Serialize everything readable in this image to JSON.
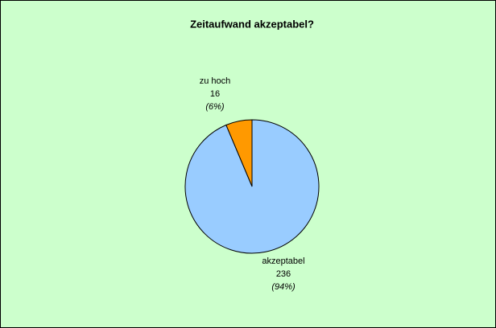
{
  "chart_data": {
    "type": "pie",
    "title": "Zeitaufwand akzeptabel?",
    "categories": [
      "zu hoch",
      "akzeptabel"
    ],
    "values": [
      16,
      236
    ],
    "percentages": [
      6,
      94
    ],
    "percentage_labels": [
      "(6%)",
      "(94%)"
    ],
    "colors": [
      "#ff9900",
      "#99ccff"
    ]
  }
}
